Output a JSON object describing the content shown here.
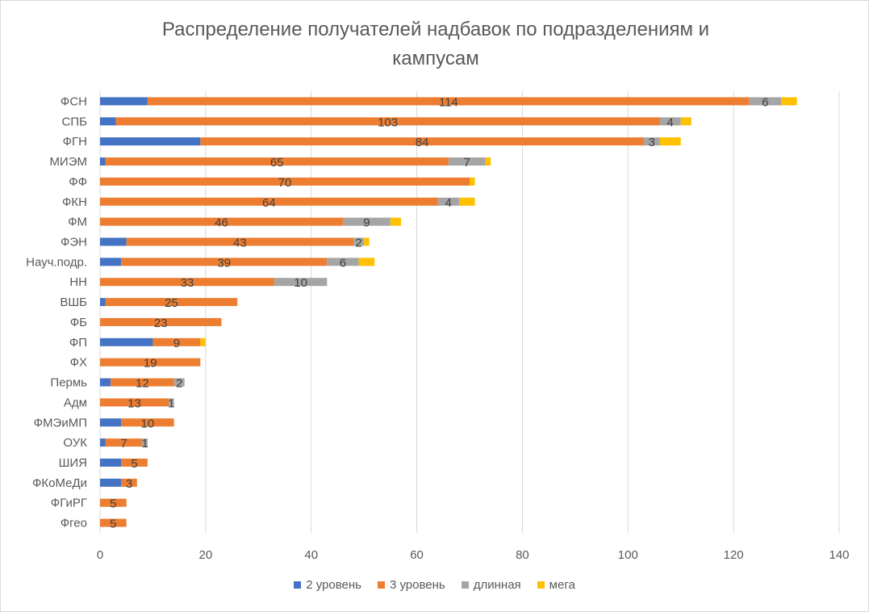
{
  "chart_data": {
    "type": "bar",
    "orientation": "horizontal",
    "stacked": true,
    "title_line1": "Распределение получателей надбавок по подразделениям и",
    "title_line2": "кампусам",
    "categories": [
      "ФСН",
      "СПБ",
      "ФГН",
      "МИЭМ",
      "ФФ",
      "ФКН",
      "ФМ",
      "ФЭН",
      "Науч.подр.",
      "НН",
      "ВШБ",
      "ФБ",
      "ФП",
      "ФХ",
      "Пермь",
      "Адм",
      "ФМЭиМП",
      "ОУК",
      "ШИЯ",
      "ФКоМеДи",
      "ФГиРГ",
      "Фгео"
    ],
    "series": [
      {
        "name": "2 уровень",
        "color": "#4472c4",
        "values": [
          9,
          3,
          19,
          1,
          0,
          0,
          0,
          5,
          4,
          0,
          1,
          0,
          10,
          0,
          2,
          0,
          4,
          1,
          4,
          4,
          0,
          0
        ],
        "labels": [
          null,
          null,
          null,
          null,
          null,
          null,
          null,
          null,
          null,
          null,
          null,
          null,
          null,
          null,
          null,
          null,
          null,
          null,
          null,
          null,
          null,
          null
        ]
      },
      {
        "name": "3 уровень",
        "color": "#ed7d31",
        "values": [
          114,
          103,
          84,
          65,
          70,
          64,
          46,
          43,
          39,
          33,
          25,
          23,
          9,
          19,
          12,
          13,
          10,
          7,
          5,
          3,
          5,
          5
        ],
        "labels": [
          "114",
          "103",
          "84",
          "65",
          "70",
          "64",
          "46",
          "43",
          "39",
          "33",
          "25",
          "23",
          "9",
          "19",
          "12",
          "13",
          "10",
          "7",
          "5",
          "3",
          "5",
          "5"
        ]
      },
      {
        "name": "длинная",
        "color": "#a5a5a5",
        "values": [
          6,
          4,
          3,
          7,
          0,
          4,
          9,
          2,
          6,
          10,
          0,
          0,
          0,
          0,
          2,
          1,
          0,
          1,
          0,
          0,
          0,
          0
        ],
        "labels": [
          "6",
          "4",
          "3",
          "7",
          null,
          "4",
          "9",
          "2",
          "6",
          "10",
          null,
          null,
          null,
          null,
          "2",
          "1",
          null,
          "1",
          null,
          null,
          null,
          null
        ]
      },
      {
        "name": "мега",
        "color": "#ffc000",
        "values": [
          3,
          2,
          4,
          1,
          1,
          3,
          2,
          1,
          3,
          0,
          0,
          0,
          1,
          0,
          0,
          0,
          0,
          0,
          0,
          0,
          0,
          0
        ],
        "labels": [
          null,
          null,
          null,
          null,
          null,
          null,
          null,
          null,
          null,
          null,
          null,
          null,
          null,
          null,
          null,
          null,
          null,
          null,
          null,
          null,
          null,
          null
        ]
      }
    ],
    "xlim": [
      0,
      140
    ],
    "xticks": [
      "0",
      "20",
      "40",
      "60",
      "80",
      "100",
      "120",
      "140"
    ],
    "grid": "vertical",
    "legend_position": "bottom"
  }
}
